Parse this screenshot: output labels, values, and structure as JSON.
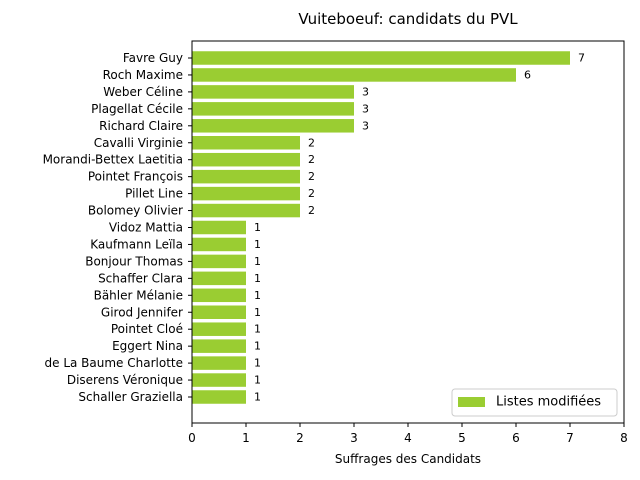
{
  "chart_data": {
    "type": "bar",
    "orientation": "horizontal",
    "title": "Vuiteboeuf: candidats du PVL",
    "xlabel": "Suffrages des Candidats",
    "ylabel": "",
    "xlim": [
      0,
      8
    ],
    "xticks": [
      "0",
      "1",
      "2",
      "3",
      "4",
      "5",
      "6",
      "7",
      "8"
    ],
    "grid": false,
    "legend_position": "lower-right",
    "bar_color": "#9acd32",
    "categories": [
      "Favre Guy",
      "Roch Maxime",
      "Weber Céline",
      "Plagellat Cécile",
      "Richard Claire",
      "Cavalli Virginie",
      "Morandi-Bettex Laetitia",
      "Pointet François",
      "Pillet Line",
      "Bolomey Olivier",
      "Vidoz Mattia",
      "Kaufmann Leïla",
      "Bonjour Thomas",
      "Schaffer Clara",
      "Bähler Mélanie",
      "Girod Jennifer",
      "Pointet Cloé",
      "Eggert Nina",
      "de La Baume Charlotte",
      "Diserens Véronique",
      "Schaller Graziella"
    ],
    "series": [
      {
        "name": "Listes modifiées",
        "values": [
          7,
          6,
          3,
          3,
          3,
          2,
          2,
          2,
          2,
          2,
          1,
          1,
          1,
          1,
          1,
          1,
          1,
          1,
          1,
          1,
          1
        ],
        "data_labels": [
          "7",
          "6",
          "3",
          "3",
          "3",
          "2",
          "2",
          "2",
          "2",
          "2",
          "1",
          "1",
          "1",
          "1",
          "1",
          "1",
          "1",
          "1",
          "1",
          "1",
          "1"
        ]
      }
    ]
  }
}
